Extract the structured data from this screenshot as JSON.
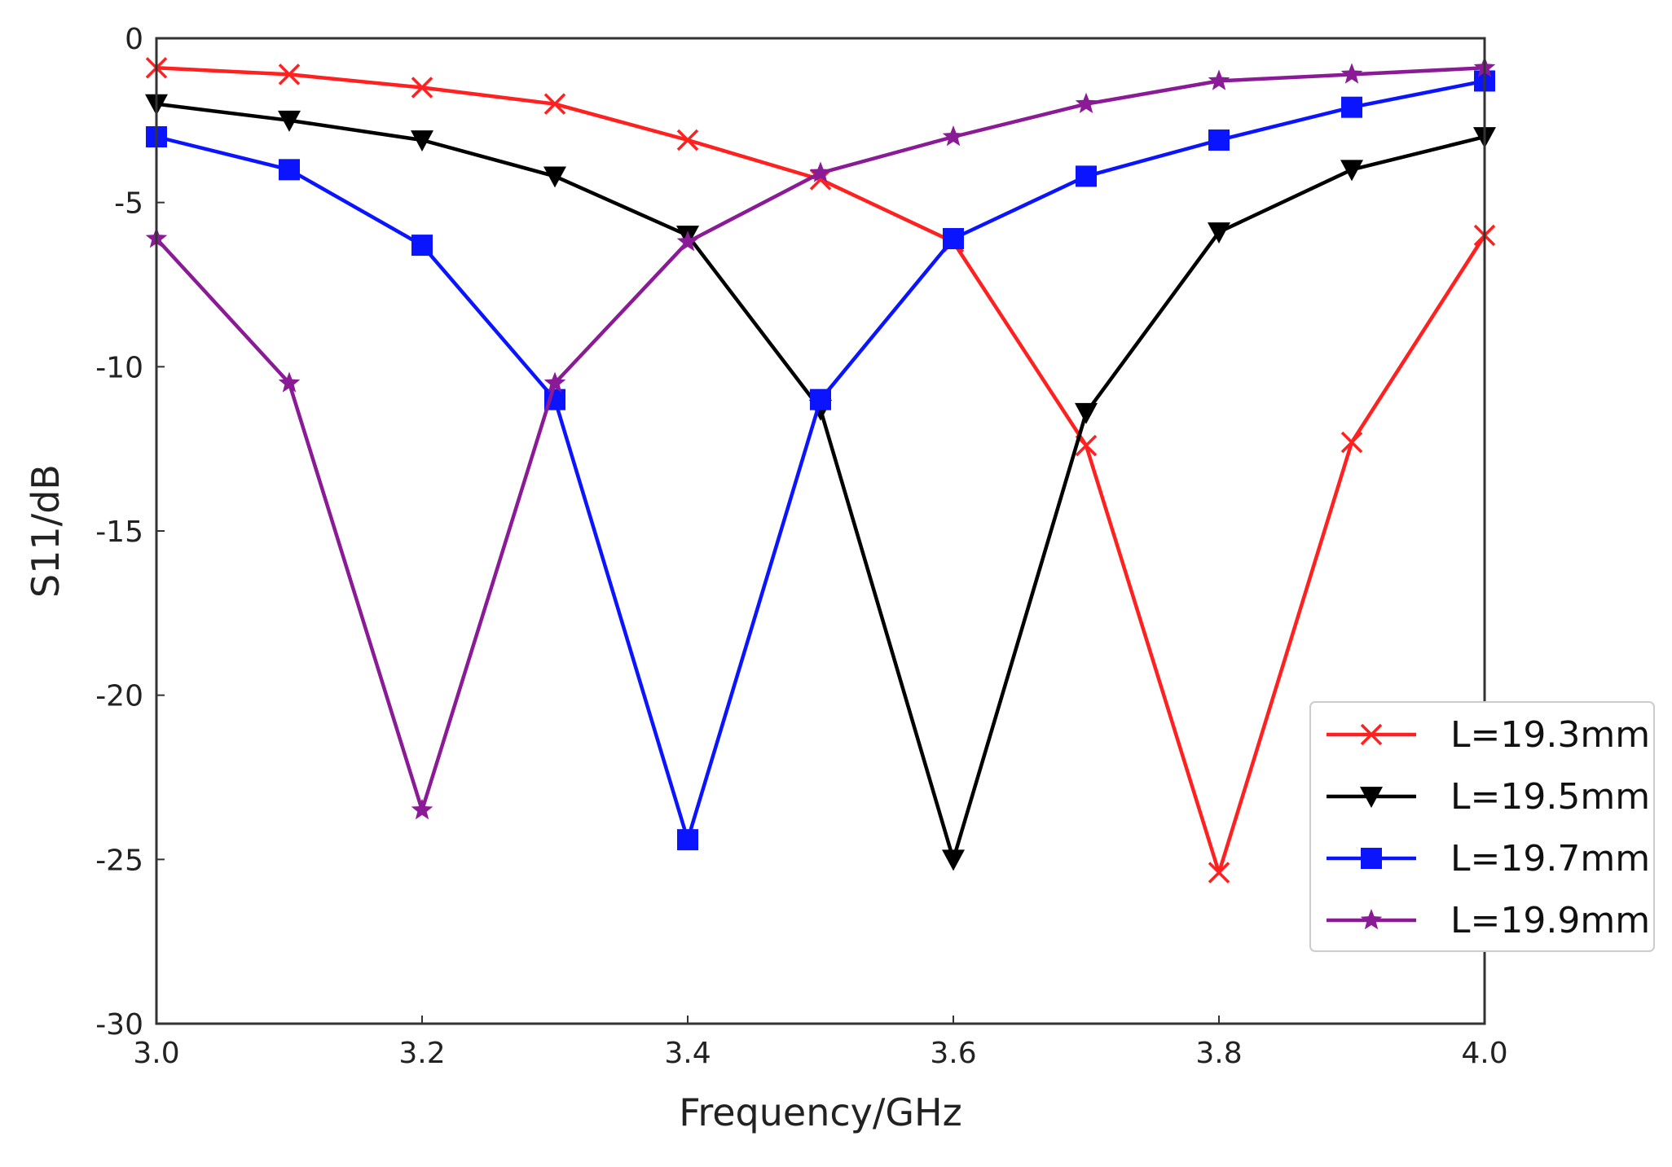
{
  "chart_data": {
    "type": "line",
    "title": "",
    "xlabel": "Frequency/GHz",
    "ylabel": "S11/dB",
    "xlim": [
      3.0,
      4.0
    ],
    "ylim": [
      -30,
      0
    ],
    "grid": false,
    "legend_position": "bottom-right",
    "x_tick_labels": [
      "3.0",
      "3.2",
      "3.4",
      "3.6",
      "3.8",
      "4.0"
    ],
    "x_tick_values": [
      3.0,
      3.2,
      3.4,
      3.6,
      3.8,
      4.0
    ],
    "y_tick_labels": [
      "0",
      "-5",
      "-10",
      "-15",
      "-20",
      "-25",
      "-30"
    ],
    "y_tick_values": [
      0,
      -5,
      -10,
      -15,
      -20,
      -25,
      -30
    ],
    "x": [
      3.0,
      3.1,
      3.2,
      3.3,
      3.4,
      3.5,
      3.6,
      3.7,
      3.8,
      3.9,
      4.0
    ],
    "series": [
      {
        "name": "L=19.3mm",
        "color": "#ff2020",
        "marker": "x",
        "values": [
          -0.9,
          -1.1,
          -1.5,
          -2.0,
          -3.1,
          -4.3,
          -6.2,
          -12.4,
          -25.4,
          -12.3,
          -6.0
        ]
      },
      {
        "name": "L=19.5mm",
        "color": "#000000",
        "marker": "triangle-down",
        "values": [
          -2.0,
          -2.5,
          -3.1,
          -4.2,
          -6.0,
          -11.3,
          -25.0,
          -11.4,
          -5.9,
          -4.0,
          -3.0
        ]
      },
      {
        "name": "L=19.7mm",
        "color": "#0a14ff",
        "marker": "square",
        "values": [
          -3.0,
          -4.0,
          -6.3,
          -11.0,
          -24.4,
          -11.0,
          -6.1,
          -4.2,
          -3.1,
          -2.1,
          -1.3
        ]
      },
      {
        "name": "L=19.9mm",
        "color": "#8a1a96",
        "marker": "star",
        "values": [
          -6.1,
          -10.5,
          -23.5,
          -10.5,
          -6.2,
          -4.1,
          -3.0,
          -2.0,
          -1.3,
          -1.1,
          -0.9
        ]
      }
    ]
  }
}
